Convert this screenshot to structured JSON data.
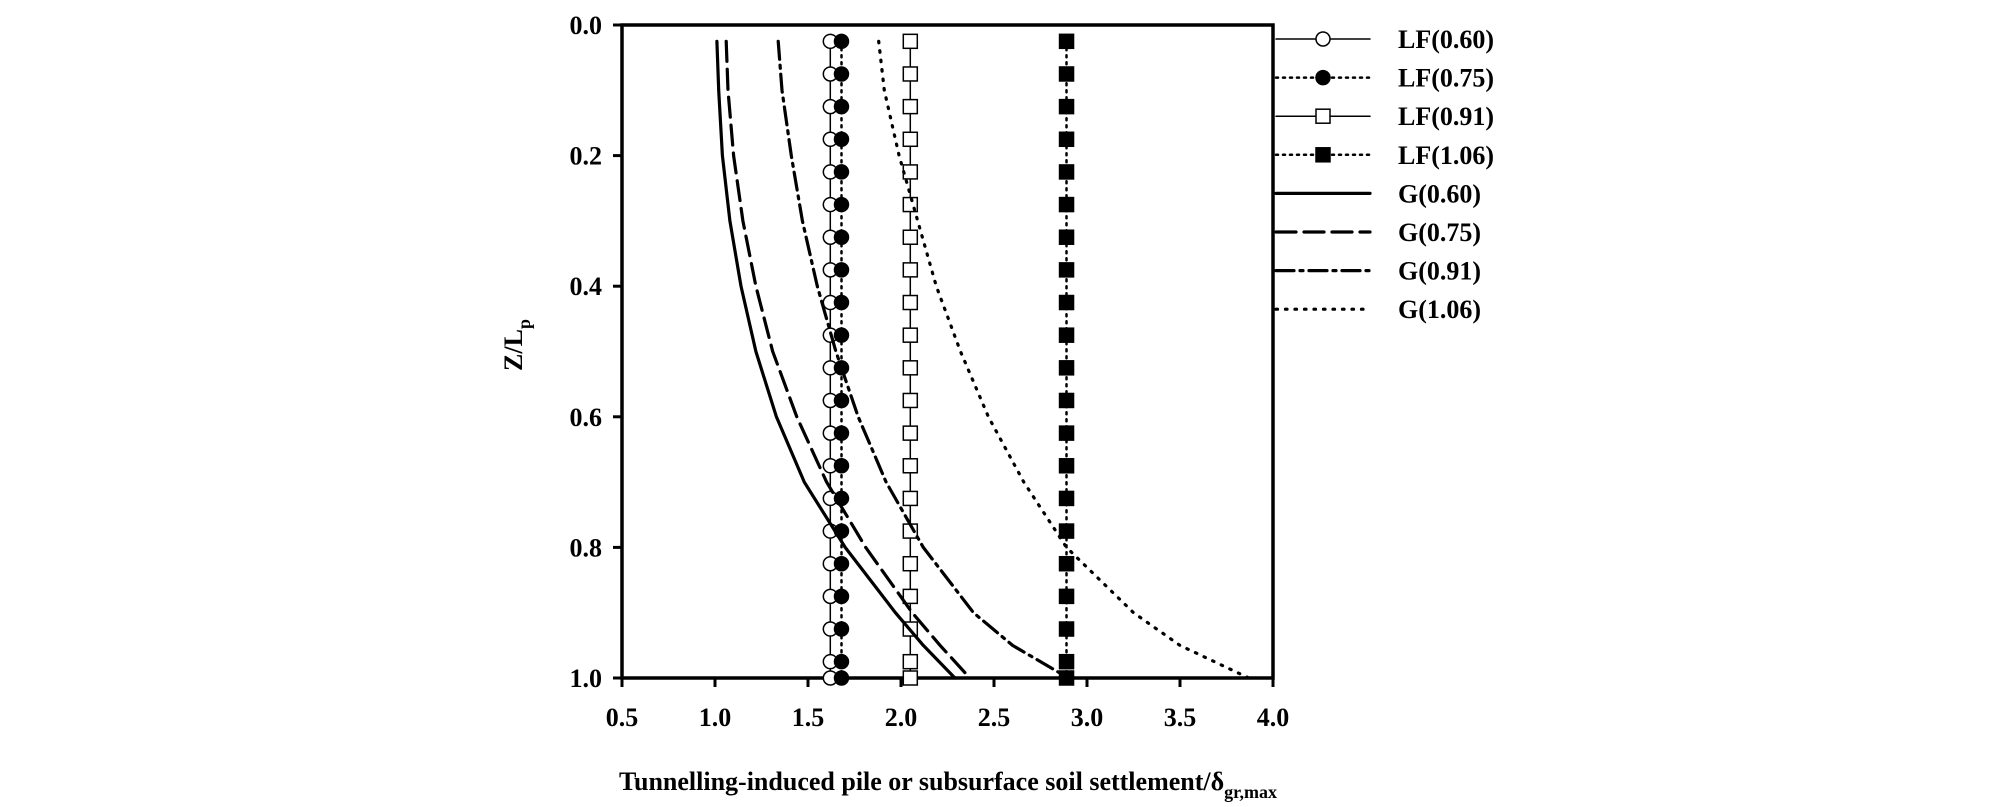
{
  "chart_data": {
    "type": "line",
    "title": "",
    "xlabel_main": "Tunnelling-induced pile or subsurface soil settlement/δ",
    "xlabel_sub": "gr,max",
    "ylabel_main": "Z/L",
    "ylabel_sub": "p",
    "xlim": [
      0.5,
      4.0
    ],
    "ylim": [
      0.0,
      1.0
    ],
    "y_inverted": true,
    "xticks": [
      "0.5",
      "1.0",
      "1.5",
      "2.0",
      "2.5",
      "3.0",
      "3.5",
      "4.0"
    ],
    "yticks": [
      "0.0",
      "0.2",
      "0.4",
      "0.6",
      "0.8",
      "1.0"
    ],
    "legend_position": "right, outside plot",
    "series": [
      {
        "name": "LF(0.60)",
        "style": "solid",
        "marker": "circle-open",
        "points": [
          [
            1.62,
            0.025
          ],
          [
            1.62,
            0.075
          ],
          [
            1.62,
            0.125
          ],
          [
            1.62,
            0.175
          ],
          [
            1.62,
            0.225
          ],
          [
            1.62,
            0.275
          ],
          [
            1.62,
            0.325
          ],
          [
            1.62,
            0.375
          ],
          [
            1.62,
            0.425
          ],
          [
            1.62,
            0.475
          ],
          [
            1.62,
            0.525
          ],
          [
            1.62,
            0.575
          ],
          [
            1.62,
            0.625
          ],
          [
            1.62,
            0.675
          ],
          [
            1.62,
            0.725
          ],
          [
            1.62,
            0.775
          ],
          [
            1.62,
            0.825
          ],
          [
            1.62,
            0.875
          ],
          [
            1.62,
            0.925
          ],
          [
            1.62,
            0.975
          ],
          [
            1.62,
            1.0
          ]
        ]
      },
      {
        "name": "LF(0.75)",
        "style": "dotted",
        "marker": "circle-filled",
        "points": [
          [
            1.68,
            0.025
          ],
          [
            1.68,
            0.075
          ],
          [
            1.68,
            0.125
          ],
          [
            1.68,
            0.175
          ],
          [
            1.68,
            0.225
          ],
          [
            1.68,
            0.275
          ],
          [
            1.68,
            0.325
          ],
          [
            1.68,
            0.375
          ],
          [
            1.68,
            0.425
          ],
          [
            1.68,
            0.475
          ],
          [
            1.68,
            0.525
          ],
          [
            1.68,
            0.575
          ],
          [
            1.68,
            0.625
          ],
          [
            1.68,
            0.675
          ],
          [
            1.68,
            0.725
          ],
          [
            1.68,
            0.775
          ],
          [
            1.68,
            0.825
          ],
          [
            1.68,
            0.875
          ],
          [
            1.68,
            0.925
          ],
          [
            1.68,
            0.975
          ],
          [
            1.68,
            1.0
          ]
        ]
      },
      {
        "name": "LF(0.91)",
        "style": "solid",
        "marker": "square-open",
        "points": [
          [
            2.05,
            0.025
          ],
          [
            2.05,
            0.075
          ],
          [
            2.05,
            0.125
          ],
          [
            2.05,
            0.175
          ],
          [
            2.05,
            0.225
          ],
          [
            2.05,
            0.275
          ],
          [
            2.05,
            0.325
          ],
          [
            2.05,
            0.375
          ],
          [
            2.05,
            0.425
          ],
          [
            2.05,
            0.475
          ],
          [
            2.05,
            0.525
          ],
          [
            2.05,
            0.575
          ],
          [
            2.05,
            0.625
          ],
          [
            2.05,
            0.675
          ],
          [
            2.05,
            0.725
          ],
          [
            2.05,
            0.775
          ],
          [
            2.05,
            0.825
          ],
          [
            2.05,
            0.875
          ],
          [
            2.05,
            0.925
          ],
          [
            2.05,
            0.975
          ],
          [
            2.05,
            1.0
          ]
        ]
      },
      {
        "name": "LF(1.06)",
        "style": "dotted",
        "marker": "square-filled",
        "points": [
          [
            2.89,
            0.025
          ],
          [
            2.89,
            0.075
          ],
          [
            2.89,
            0.125
          ],
          [
            2.89,
            0.175
          ],
          [
            2.89,
            0.225
          ],
          [
            2.89,
            0.275
          ],
          [
            2.89,
            0.325
          ],
          [
            2.89,
            0.375
          ],
          [
            2.89,
            0.425
          ],
          [
            2.89,
            0.475
          ],
          [
            2.89,
            0.525
          ],
          [
            2.89,
            0.575
          ],
          [
            2.89,
            0.625
          ],
          [
            2.89,
            0.675
          ],
          [
            2.89,
            0.725
          ],
          [
            2.89,
            0.775
          ],
          [
            2.89,
            0.825
          ],
          [
            2.89,
            0.875
          ],
          [
            2.89,
            0.925
          ],
          [
            2.89,
            0.975
          ],
          [
            2.89,
            1.0
          ]
        ]
      },
      {
        "name": "G(0.60)",
        "style": "solid",
        "marker": "none",
        "points": [
          [
            1.01,
            0.025
          ],
          [
            1.02,
            0.1
          ],
          [
            1.04,
            0.2
          ],
          [
            1.08,
            0.3
          ],
          [
            1.14,
            0.4
          ],
          [
            1.22,
            0.5
          ],
          [
            1.33,
            0.6
          ],
          [
            1.48,
            0.7
          ],
          [
            1.7,
            0.8
          ],
          [
            1.97,
            0.9
          ],
          [
            2.12,
            0.95
          ],
          [
            2.29,
            1.0
          ]
        ]
      },
      {
        "name": "G(0.75)",
        "style": "dashed",
        "marker": "none",
        "points": [
          [
            1.06,
            0.025
          ],
          [
            1.07,
            0.1
          ],
          [
            1.1,
            0.2
          ],
          [
            1.15,
            0.3
          ],
          [
            1.22,
            0.4
          ],
          [
            1.31,
            0.5
          ],
          [
            1.44,
            0.6
          ],
          [
            1.6,
            0.7
          ],
          [
            1.81,
            0.8
          ],
          [
            2.06,
            0.9
          ],
          [
            2.21,
            0.95
          ],
          [
            2.37,
            1.0
          ]
        ]
      },
      {
        "name": "G(0.91)",
        "style": "dash-dot",
        "marker": "none",
        "points": [
          [
            1.34,
            0.025
          ],
          [
            1.36,
            0.1
          ],
          [
            1.41,
            0.2
          ],
          [
            1.47,
            0.3
          ],
          [
            1.55,
            0.4
          ],
          [
            1.65,
            0.5
          ],
          [
            1.77,
            0.6
          ],
          [
            1.92,
            0.7
          ],
          [
            2.12,
            0.8
          ],
          [
            2.39,
            0.9
          ],
          [
            2.6,
            0.95
          ],
          [
            2.9,
            1.0
          ]
        ]
      },
      {
        "name": "G(1.06)",
        "style": "dotted",
        "marker": "none",
        "points": [
          [
            1.88,
            0.025
          ],
          [
            1.91,
            0.1
          ],
          [
            1.99,
            0.2
          ],
          [
            2.09,
            0.3
          ],
          [
            2.19,
            0.4
          ],
          [
            2.32,
            0.5
          ],
          [
            2.47,
            0.6
          ],
          [
            2.66,
            0.7
          ],
          [
            2.89,
            0.8
          ],
          [
            3.25,
            0.9
          ],
          [
            3.5,
            0.95
          ],
          [
            3.87,
            1.0
          ]
        ]
      }
    ]
  }
}
